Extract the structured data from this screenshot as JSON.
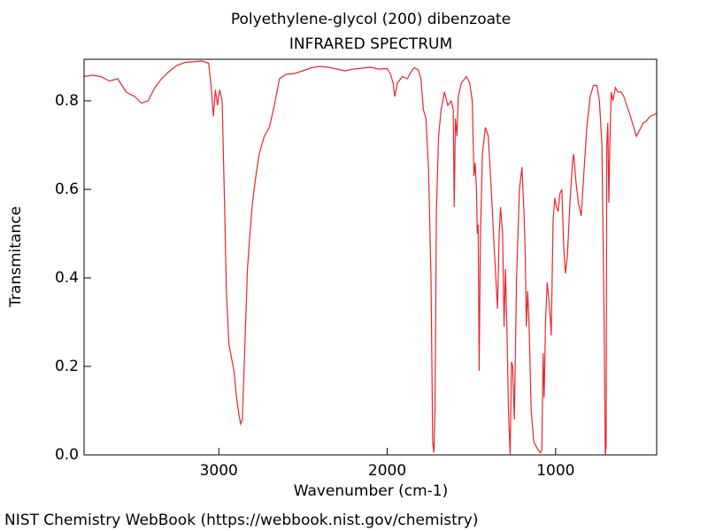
{
  "chart_data": {
    "type": "line",
    "title": "Polyethylene-glycol (200) dibenzoate",
    "subtitle": "INFRARED SPECTRUM",
    "x_label": "Wavenumber (cm-1)",
    "y_label": "Transmitance",
    "source": "NIST Chemistry WebBook (https://webbook.nist.gov/chemistry)",
    "color": "#e8262a",
    "grid": false,
    "xlim": [
      3800,
      400
    ],
    "ylim": [
      0,
      0.894
    ],
    "xticks": [
      3000,
      2000,
      1000
    ],
    "yticks": [
      {
        "value": 0,
        "label": "0.0"
      },
      0.2,
      0.4,
      0.6,
      0.8
    ],
    "x": [
      3800,
      3750,
      3700,
      3650,
      3600,
      3550,
      3500,
      3460,
      3420,
      3380,
      3340,
      3300,
      3250,
      3200,
      3100,
      3060,
      3045,
      3032,
      3020,
      3008,
      2995,
      2980,
      2965,
      2955,
      2940,
      2925,
      2910,
      2895,
      2880,
      2870,
      2860,
      2845,
      2830,
      2815,
      2800,
      2780,
      2760,
      2730,
      2700,
      2670,
      2640,
      2600,
      2550,
      2500,
      2450,
      2400,
      2350,
      2300,
      2250,
      2200,
      2150,
      2100,
      2050,
      2000,
      1980,
      1965,
      1955,
      1940,
      1910,
      1880,
      1860,
      1840,
      1815,
      1800,
      1785,
      1770,
      1755,
      1740,
      1730,
      1723,
      1716,
      1708,
      1695,
      1680,
      1660,
      1640,
      1620,
      1608,
      1602,
      1595,
      1586,
      1578,
      1560,
      1530,
      1510,
      1495,
      1485,
      1478,
      1470,
      1465,
      1460,
      1454,
      1447,
      1435,
      1417,
      1400,
      1385,
      1365,
      1345,
      1335,
      1327,
      1315,
      1306,
      1298,
      1290,
      1280,
      1270,
      1262,
      1255,
      1245,
      1232,
      1215,
      1200,
      1188,
      1180,
      1174,
      1166,
      1158,
      1145,
      1130,
      1110,
      1090,
      1082,
      1074,
      1068,
      1060,
      1050,
      1040,
      1030,
      1026,
      1015,
      1005,
      995,
      985,
      975,
      963,
      952,
      942,
      930,
      915,
      900,
      893,
      880,
      865,
      848,
      835,
      815,
      795,
      775,
      755,
      740,
      725,
      712,
      705,
      700,
      696,
      690,
      684,
      678,
      670,
      660,
      645,
      630,
      610,
      595,
      578,
      560,
      540,
      520,
      500,
      480,
      460,
      440,
      420,
      400
    ],
    "values": [
      0.855,
      0.858,
      0.855,
      0.845,
      0.85,
      0.82,
      0.81,
      0.795,
      0.8,
      0.83,
      0.85,
      0.865,
      0.88,
      0.887,
      0.89,
      0.885,
      0.83,
      0.765,
      0.825,
      0.79,
      0.825,
      0.8,
      0.55,
      0.37,
      0.25,
      0.22,
      0.19,
      0.13,
      0.09,
      0.07,
      0.08,
      0.25,
      0.42,
      0.5,
      0.57,
      0.63,
      0.68,
      0.72,
      0.74,
      0.79,
      0.85,
      0.86,
      0.862,
      0.868,
      0.875,
      0.878,
      0.876,
      0.872,
      0.868,
      0.872,
      0.874,
      0.876,
      0.872,
      0.873,
      0.86,
      0.84,
      0.81,
      0.84,
      0.855,
      0.85,
      0.865,
      0.875,
      0.87,
      0.85,
      0.78,
      0.76,
      0.65,
      0.4,
      0.03,
      0.005,
      0.1,
      0.55,
      0.72,
      0.78,
      0.82,
      0.79,
      0.8,
      0.78,
      0.56,
      0.76,
      0.72,
      0.81,
      0.84,
      0.855,
      0.84,
      0.8,
      0.63,
      0.66,
      0.6,
      0.5,
      0.52,
      0.19,
      0.48,
      0.68,
      0.74,
      0.72,
      0.62,
      0.47,
      0.33,
      0.5,
      0.56,
      0.5,
      0.29,
      0.42,
      0.3,
      0.1,
      0.0,
      0.21,
      0.2,
      0.08,
      0.4,
      0.6,
      0.65,
      0.55,
      0.45,
      0.29,
      0.37,
      0.3,
      0.1,
      0.03,
      0.015,
      0.005,
      0.01,
      0.23,
      0.13,
      0.3,
      0.39,
      0.35,
      0.3,
      0.27,
      0.53,
      0.58,
      0.56,
      0.55,
      0.59,
      0.6,
      0.47,
      0.41,
      0.45,
      0.57,
      0.66,
      0.68,
      0.62,
      0.57,
      0.54,
      0.62,
      0.74,
      0.81,
      0.835,
      0.835,
      0.8,
      0.7,
      0.3,
      0.0,
      0.02,
      0.7,
      0.75,
      0.57,
      0.7,
      0.82,
      0.8,
      0.83,
      0.82,
      0.82,
      0.81,
      0.79,
      0.77,
      0.745,
      0.72,
      0.735,
      0.75,
      0.755,
      0.765,
      0.768,
      0.772
    ]
  }
}
